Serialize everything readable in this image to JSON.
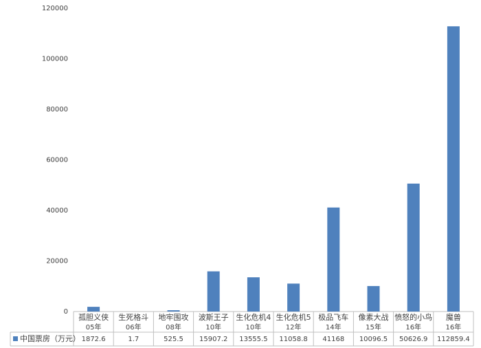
{
  "chart_data": {
    "type": "bar",
    "categories": [
      [
        "孤胆义侠",
        "05年"
      ],
      [
        "生死格斗",
        "06年"
      ],
      [
        "地牢围攻",
        "08年"
      ],
      [
        "波斯王子",
        "10年"
      ],
      [
        "生化危机4",
        "10年"
      ],
      [
        "生化危机5",
        "12年"
      ],
      [
        "极品飞车",
        "14年"
      ],
      [
        "像素大战",
        "15年"
      ],
      [
        "愤怒的小鸟",
        "16年"
      ],
      [
        "魔兽",
        "16年"
      ]
    ],
    "series": [
      {
        "name": "中国票房（万元）",
        "color": "#4f81bd",
        "values": [
          1872.6,
          1.7,
          525.5,
          15907.2,
          13555.5,
          11058.8,
          41168,
          10096.5,
          50626.9,
          112859.4
        ]
      }
    ],
    "ylim": [
      0,
      120000
    ],
    "yticks": [
      0,
      20000,
      40000,
      60000,
      80000,
      100000,
      120000
    ],
    "grid": false
  }
}
